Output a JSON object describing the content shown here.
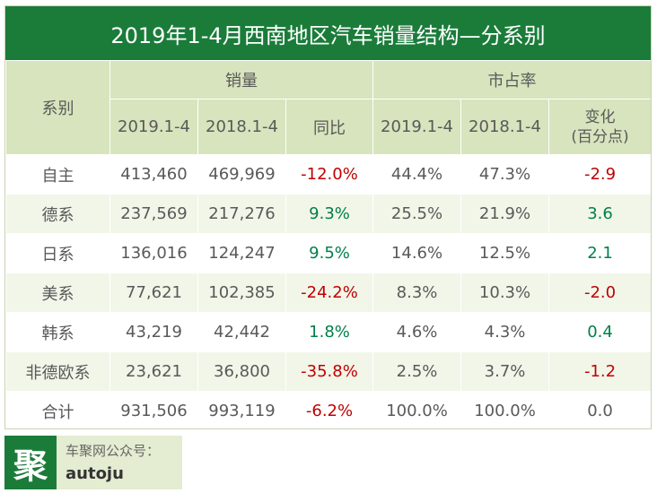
{
  "title": "2019年1-4月西南地区汽车销量结构—分系别",
  "header": {
    "category_label": "系别",
    "group_sales": "销量",
    "group_share": "市占率",
    "sales_2019": "2019.1-4",
    "sales_2018": "2018.1-4",
    "yoy": "同比",
    "share_2019": "2019.1-4",
    "share_2018": "2018.1-4",
    "change_line1": "变化",
    "change_line2": "(百分点)"
  },
  "rows": [
    {
      "category": "自主",
      "sales_2019": "413,460",
      "sales_2018": "469,969",
      "yoy": "-12.0%",
      "share_2019": "44.4%",
      "share_2018": "47.3%",
      "change": "-2.9"
    },
    {
      "category": "德系",
      "sales_2019": "237,569",
      "sales_2018": "217,276",
      "yoy": "9.3%",
      "share_2019": "25.5%",
      "share_2018": "21.9%",
      "change": "3.6"
    },
    {
      "category": "日系",
      "sales_2019": "136,016",
      "sales_2018": "124,247",
      "yoy": "9.5%",
      "share_2019": "14.6%",
      "share_2018": "12.5%",
      "change": "2.1"
    },
    {
      "category": "美系",
      "sales_2019": "77,621",
      "sales_2018": "102,385",
      "yoy": "-24.2%",
      "share_2019": "8.3%",
      "share_2018": "10.3%",
      "change": "-2.0"
    },
    {
      "category": "韩系",
      "sales_2019": "43,219",
      "sales_2018": "42,442",
      "yoy": "1.8%",
      "share_2019": "4.6%",
      "share_2018": "4.3%",
      "change": "0.4"
    },
    {
      "category": "非德欧系",
      "sales_2019": "23,621",
      "sales_2018": "36,800",
      "yoy": "-35.8%",
      "share_2019": "2.5%",
      "share_2018": "3.7%",
      "change": "-1.2"
    },
    {
      "category": "合计",
      "sales_2019": "931,506",
      "sales_2018": "993,119",
      "yoy": "-6.2%",
      "share_2019": "100.0%",
      "share_2018": "100.0%",
      "change": "0.0"
    }
  ],
  "brand": {
    "logo_char": "聚",
    "line1": "车聚网公众号：",
    "line2": "autoju"
  },
  "colors": {
    "title_bg": "#1b7c3a",
    "header_bg": "#d7e4bd",
    "negative": "#c00000",
    "positive": "#00804a"
  }
}
